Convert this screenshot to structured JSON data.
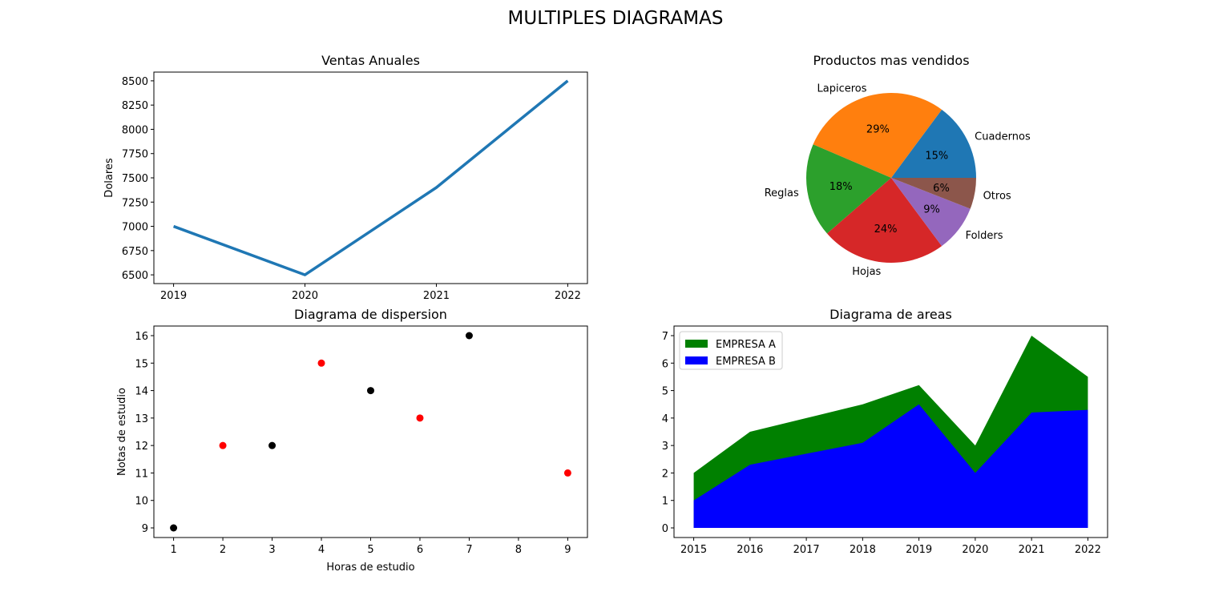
{
  "figure": {
    "title": "MULTIPLES DIAGRAMAS"
  },
  "chart_data": [
    {
      "id": "ventas",
      "type": "line",
      "title": "Ventas Anuales",
      "xlabel": "",
      "ylabel": "Dolares",
      "x": [
        "2019",
        "2020",
        "2021",
        "2022"
      ],
      "series": [
        {
          "values": [
            7000,
            6500,
            7400,
            8500
          ],
          "color": "#1f77b4"
        }
      ],
      "ylim": [
        6410,
        8590
      ],
      "yticks": [
        6500,
        6750,
        7000,
        7250,
        7500,
        7750,
        8000,
        8250,
        8500
      ],
      "grid": false
    },
    {
      "id": "productos",
      "type": "pie",
      "title": "Productos mas vendidos",
      "slices": [
        {
          "label": "Cuadernos",
          "value": 15,
          "pct": "15%",
          "color": "#1f77b4"
        },
        {
          "label": "Lapiceros",
          "value": 29,
          "pct": "29%",
          "color": "#ff7f0e"
        },
        {
          "label": "Reglas",
          "value": 18,
          "pct": "18%",
          "color": "#2ca02c"
        },
        {
          "label": "Hojas",
          "value": 24,
          "pct": "24%",
          "color": "#d62728"
        },
        {
          "label": "Folders",
          "value": 9,
          "pct": "9%",
          "color": "#9467bd"
        },
        {
          "label": "Otros",
          "value": 6,
          "pct": "6%",
          "color": "#8c564b"
        }
      ]
    },
    {
      "id": "dispersion",
      "type": "scatter",
      "title": "Diagrama de dispersion",
      "xlabel": "Horas de estudio",
      "ylabel": "Notas de estudio",
      "points": [
        {
          "x": 1,
          "y": 9,
          "color": "#000000"
        },
        {
          "x": 2,
          "y": 12,
          "color": "#ff0000"
        },
        {
          "x": 3,
          "y": 12,
          "color": "#000000"
        },
        {
          "x": 4,
          "y": 15,
          "color": "#ff0000"
        },
        {
          "x": 5,
          "y": 14,
          "color": "#000000"
        },
        {
          "x": 6,
          "y": 13,
          "color": "#ff0000"
        },
        {
          "x": 7,
          "y": 16,
          "color": "#000000"
        },
        {
          "x": 9,
          "y": 11,
          "color": "#ff0000"
        }
      ],
      "xlim": [
        0.6,
        9.4
      ],
      "ylim": [
        8.65,
        16.35
      ],
      "xticks": [
        1,
        2,
        3,
        4,
        5,
        6,
        7,
        8,
        9
      ],
      "yticks": [
        9,
        10,
        11,
        12,
        13,
        14,
        15,
        16
      ],
      "grid": false
    },
    {
      "id": "areas",
      "type": "area",
      "title": "Diagrama de areas",
      "x": [
        2015,
        2016,
        2017,
        2018,
        2019,
        2020,
        2021,
        2022
      ],
      "series": [
        {
          "name": "EMPRESA A",
          "values": [
            2,
            3.5,
            4.0,
            4.5,
            5.2,
            3.0,
            7.0,
            5.5
          ],
          "color": "#008000"
        },
        {
          "name": "EMPRESA B",
          "values": [
            1,
            2.3,
            2.7,
            3.1,
            4.5,
            2.0,
            4.2,
            4.3
          ],
          "color": "#0000ff"
        }
      ],
      "xlim": [
        2014.65,
        2022.35
      ],
      "ylim": [
        -0.35,
        7.35
      ],
      "yticks": [
        0,
        1,
        2,
        3,
        4,
        5,
        6,
        7
      ],
      "legend": "upper-left",
      "grid": false
    }
  ]
}
